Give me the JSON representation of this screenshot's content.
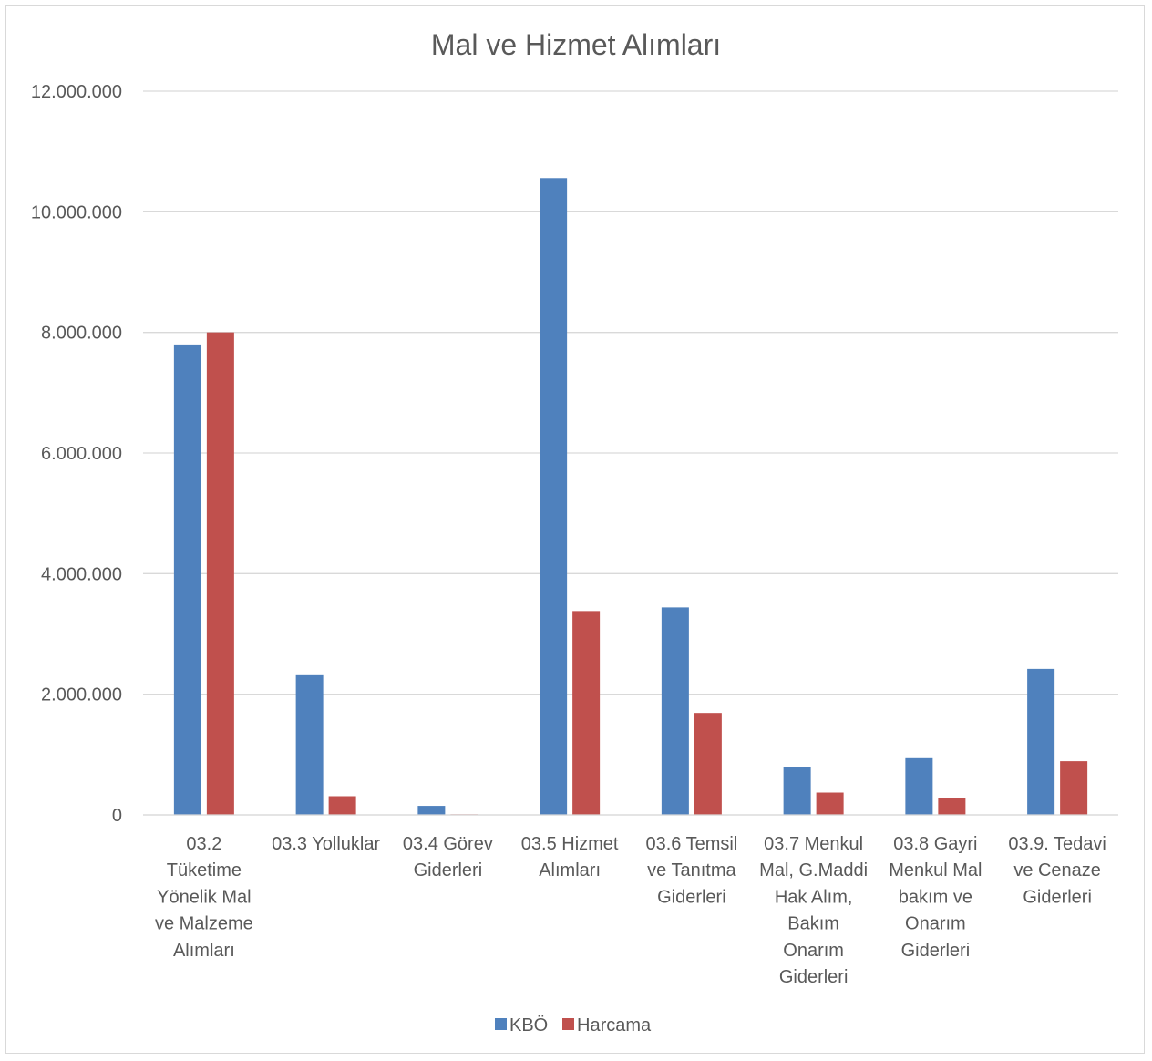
{
  "chart_data": {
    "type": "bar",
    "title": "Mal ve Hizmet Alımları",
    "xlabel": "",
    "ylabel": "",
    "ylim": [
      0,
      12000000
    ],
    "yticks": [
      0,
      2000000,
      4000000,
      6000000,
      8000000,
      10000000,
      12000000
    ],
    "ytick_labels": [
      "0",
      "2.000.000",
      "4.000.000",
      "6.000.000",
      "8.000.000",
      "10.000.000",
      "12.000.000"
    ],
    "grid": true,
    "legend_position": "bottom",
    "categories": [
      [
        "03.2",
        "Tüketime",
        "Yönelik Mal",
        "ve Malzeme",
        "Alımları"
      ],
      [
        "03.3 Yolluklar"
      ],
      [
        "03.4 Görev",
        "Giderleri"
      ],
      [
        "03.5 Hizmet",
        "Alımları"
      ],
      [
        "03.6 Temsil",
        "ve Tanıtma",
        "Giderleri"
      ],
      [
        "03.7 Menkul",
        "Mal, G.Maddi",
        "Hak Alım,",
        "Bakım",
        "Onarım",
        "Giderleri"
      ],
      [
        "03.8 Gayri",
        "Menkul Mal",
        "bakım ve",
        "Onarım",
        "Giderleri"
      ],
      [
        "03.9. Tedavi",
        "ve Cenaze",
        "Giderleri"
      ]
    ],
    "series": [
      {
        "name": "KBÖ",
        "color": "#4f81bd",
        "values": [
          7800000,
          2330000,
          150000,
          10560000,
          3440000,
          800000,
          940000,
          2420000
        ]
      },
      {
        "name": "Harcama",
        "color": "#c0504d",
        "values": [
          8000000,
          310000,
          10000,
          3380000,
          1690000,
          370000,
          285000,
          890000
        ]
      }
    ]
  }
}
